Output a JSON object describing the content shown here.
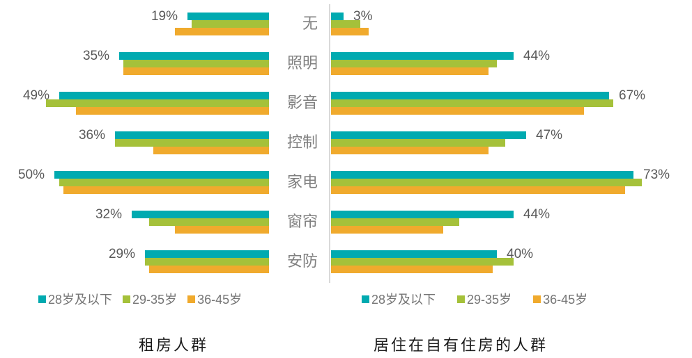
{
  "colors": {
    "series_teal": "#00AAB0",
    "series_green": "#A5C13A",
    "series_orange": "#F0AA2D",
    "data_label": "#595959",
    "category_label": "#808080",
    "legend_text": "#757575",
    "divider": "#D9D9D9",
    "title_text": "#1A1A1A"
  },
  "categories": [
    "无",
    "照明",
    "影音",
    "控制",
    "家电",
    "窗帘",
    "安防"
  ],
  "legend": {
    "items": [
      {
        "label": "28岁及以下",
        "color": "#00AAB0"
      },
      {
        "label": "29-35岁",
        "color": "#A5C13A"
      },
      {
        "label": "36-45岁",
        "color": "#F0AA2D"
      }
    ]
  },
  "chart_data": [
    {
      "type": "bar",
      "orientation": "horizontal-right-aligned",
      "title": "租房人群",
      "categories": [
        "无",
        "照明",
        "影音",
        "控制",
        "家电",
        "窗帘",
        "安防"
      ],
      "series": [
        {
          "name": "28岁及以下",
          "color": "#00AAB0",
          "values": [
            19,
            35,
            49,
            36,
            50,
            32,
            29
          ]
        },
        {
          "name": "29-35岁",
          "color": "#A5C13A",
          "values": [
            18,
            34,
            52,
            36,
            49,
            28,
            29
          ]
        },
        {
          "name": "36-45岁",
          "color": "#F0AA2D",
          "values": [
            22,
            34,
            45,
            27,
            48,
            22,
            28
          ]
        }
      ],
      "data_labels": [
        "19%",
        "35%",
        "49%",
        "36%",
        "50%",
        "32%",
        "29%"
      ],
      "xlim": [
        0,
        62
      ],
      "grid": false,
      "legend_position": "bottom-left"
    },
    {
      "type": "bar",
      "orientation": "horizontal-left-aligned",
      "title": "居住在自有住房的人群",
      "categories": [
        "无",
        "照明",
        "影音",
        "控制",
        "家电",
        "窗帘",
        "安防"
      ],
      "series": [
        {
          "name": "28岁及以下",
          "color": "#00AAB0",
          "values": [
            3,
            44,
            67,
            47,
            73,
            44,
            40
          ]
        },
        {
          "name": "29-35岁",
          "color": "#A5C13A",
          "values": [
            7,
            40,
            68,
            42,
            75,
            31,
            44
          ]
        },
        {
          "name": "36-45岁",
          "color": "#F0AA2D",
          "values": [
            9,
            38,
            61,
            38,
            71,
            27,
            39
          ]
        }
      ],
      "data_labels": [
        "3%",
        "44%",
        "67%",
        "47%",
        "73%",
        "44%",
        "40%"
      ],
      "xlim": [
        0,
        87
      ],
      "grid": false,
      "legend_position": "bottom-left"
    }
  ]
}
